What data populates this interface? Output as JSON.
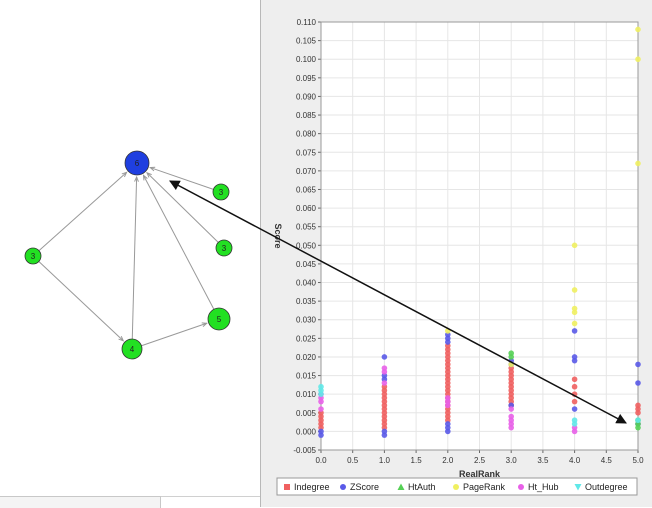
{
  "graph": {
    "nodes": [
      {
        "id": "n_top",
        "label": "6",
        "color": "#1f3fe0"
      },
      {
        "id": "n_r1",
        "label": "3",
        "color": "#22e022"
      },
      {
        "id": "n_r2",
        "label": "3",
        "color": "#22e022"
      },
      {
        "id": "n_left",
        "label": "3",
        "color": "#22e022"
      },
      {
        "id": "n_bottom",
        "label": "4",
        "color": "#22e022"
      },
      {
        "id": "n_right",
        "label": "5",
        "color": "#22e022"
      }
    ]
  },
  "chart_data": {
    "type": "scatter",
    "xlabel": "RealRank",
    "ylabel": "Score",
    "xlim": [
      0.0,
      5.0
    ],
    "ylim": [
      -0.005,
      0.11
    ],
    "x_ticks": [
      "0.0",
      "0.5",
      "1.0",
      "1.5",
      "2.0",
      "2.5",
      "3.0",
      "3.5",
      "4.0",
      "4.5",
      "5.0"
    ],
    "y_ticks": [
      "-0.005",
      "0.000",
      "0.005",
      "0.010",
      "0.015",
      "0.020",
      "0.025",
      "0.030",
      "0.035",
      "0.040",
      "0.045",
      "0.050",
      "0.055",
      "0.060",
      "0.065",
      "0.070",
      "0.075",
      "0.080",
      "0.085",
      "0.090",
      "0.095",
      "0.100",
      "0.105",
      "0.110"
    ],
    "grid": true,
    "legend_position": "bottom",
    "series": [
      {
        "name": "Indegree",
        "color": "#f06060",
        "points": [
          [
            0,
            0.001
          ],
          [
            0,
            0.002
          ],
          [
            0,
            0.003
          ],
          [
            0,
            0.004
          ],
          [
            0,
            0.005
          ],
          [
            1,
            0.001
          ],
          [
            1,
            0.002
          ],
          [
            1,
            0.003
          ],
          [
            1,
            0.004
          ],
          [
            1,
            0.005
          ],
          [
            1,
            0.006
          ],
          [
            1,
            0.007
          ],
          [
            1,
            0.008
          ],
          [
            1,
            0.009
          ],
          [
            1,
            0.01
          ],
          [
            1,
            0.011
          ],
          [
            1,
            0.012
          ],
          [
            2,
            0.003
          ],
          [
            2,
            0.004
          ],
          [
            2,
            0.005
          ],
          [
            2,
            0.006
          ],
          [
            2,
            0.007
          ],
          [
            2,
            0.008
          ],
          [
            2,
            0.009
          ],
          [
            2,
            0.01
          ],
          [
            2,
            0.011
          ],
          [
            2,
            0.012
          ],
          [
            2,
            0.013
          ],
          [
            2,
            0.014
          ],
          [
            2,
            0.015
          ],
          [
            2,
            0.016
          ],
          [
            2,
            0.017
          ],
          [
            2,
            0.018
          ],
          [
            2,
            0.019
          ],
          [
            2,
            0.02
          ],
          [
            2,
            0.021
          ],
          [
            2,
            0.022
          ],
          [
            2,
            0.023
          ],
          [
            3,
            0.007
          ],
          [
            3,
            0.008
          ],
          [
            3,
            0.009
          ],
          [
            3,
            0.01
          ],
          [
            3,
            0.011
          ],
          [
            3,
            0.012
          ],
          [
            3,
            0.013
          ],
          [
            3,
            0.014
          ],
          [
            3,
            0.015
          ],
          [
            3,
            0.016
          ],
          [
            3,
            0.017
          ],
          [
            4,
            0.008
          ],
          [
            4,
            0.01
          ],
          [
            4,
            0.012
          ],
          [
            4,
            0.014
          ],
          [
            5,
            0.005
          ],
          [
            5,
            0.006
          ],
          [
            5,
            0.007
          ]
        ]
      },
      {
        "name": "ZScore",
        "color": "#5a5ae8",
        "points": [
          [
            0,
            -0.001
          ],
          [
            0,
            0.0
          ],
          [
            1,
            -0.001
          ],
          [
            1,
            0.0
          ],
          [
            1,
            0.014
          ],
          [
            1,
            0.015
          ],
          [
            1,
            0.02
          ],
          [
            2,
            0.0
          ],
          [
            2,
            0.001
          ],
          [
            2,
            0.002
          ],
          [
            2,
            0.024
          ],
          [
            2,
            0.025
          ],
          [
            2,
            0.026
          ],
          [
            3,
            0.007
          ],
          [
            3,
            0.018
          ],
          [
            3,
            0.019
          ],
          [
            4,
            0.006
          ],
          [
            4,
            0.019
          ],
          [
            4,
            0.02
          ],
          [
            4,
            0.027
          ],
          [
            5,
            0.002
          ],
          [
            5,
            0.013
          ],
          [
            5,
            0.018
          ]
        ]
      },
      {
        "name": "HtAuth",
        "color": "#55d055",
        "points": [
          [
            3,
            0.02
          ],
          [
            3,
            0.021
          ],
          [
            5,
            0.001
          ],
          [
            5,
            0.002
          ],
          [
            5,
            0.003
          ]
        ]
      },
      {
        "name": "PageRank",
        "color": "#f0f060",
        "points": [
          [
            2,
            0.027
          ],
          [
            3,
            0.018
          ],
          [
            4,
            0.029
          ],
          [
            4,
            0.032
          ],
          [
            4,
            0.033
          ],
          [
            4,
            0.038
          ],
          [
            4,
            0.05
          ],
          [
            5,
            0.072
          ],
          [
            5,
            0.1
          ],
          [
            5,
            0.108
          ]
        ]
      },
      {
        "name": "Ht_Hub",
        "color": "#e860e8",
        "points": [
          [
            0,
            0.006
          ],
          [
            0,
            0.008
          ],
          [
            0,
            0.009
          ],
          [
            0,
            0.01
          ],
          [
            1,
            0.013
          ],
          [
            1,
            0.016
          ],
          [
            1,
            0.017
          ],
          [
            2,
            0.007
          ],
          [
            2,
            0.008
          ],
          [
            2,
            0.009
          ],
          [
            3,
            0.001
          ],
          [
            3,
            0.002
          ],
          [
            3,
            0.003
          ],
          [
            3,
            0.004
          ],
          [
            3,
            0.006
          ],
          [
            4,
            0.0
          ],
          [
            4,
            0.001
          ]
        ]
      },
      {
        "name": "Outdegree",
        "color": "#60e8e8",
        "points": [
          [
            0,
            0.01
          ],
          [
            0,
            0.011
          ],
          [
            0,
            0.012
          ],
          [
            4,
            0.002
          ],
          [
            4,
            0.003
          ],
          [
            5,
            0.003
          ]
        ]
      }
    ]
  }
}
